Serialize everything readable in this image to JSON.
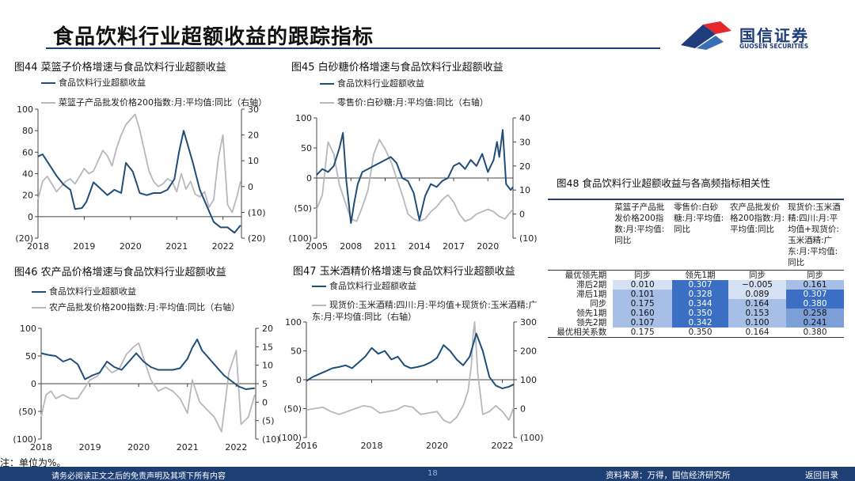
{
  "page": {
    "title": "食品饮料行业超额收益的跟踪指标",
    "logo_cn": "国信证券",
    "logo_en": "GUOSEN SECURITIES",
    "note": "注：单位为%。",
    "footer_disclaimer": "请务必阅读正文之后的免责声明及其项下所有内容",
    "page_number": "18",
    "footer_source": "资料来源：万得，国信经济研究所",
    "back_link": "返回目录"
  },
  "colors": {
    "dark": "#1f4e79",
    "light": "#b7b7bd",
    "brand": "#1e3f73",
    "accent_red": "#e4272c"
  },
  "chart_data": [
    {
      "id": "fig44",
      "type": "line",
      "title": "图44 菜篮子价格增速与食品饮料行业超额收益",
      "legend": [
        "食品饮料行业超额收益",
        "菜篮子产品批发价格200指数:月:平均值:同比（右轴）"
      ],
      "x_ticks": [
        "2018",
        "2019",
        "2020",
        "2021",
        "2022"
      ],
      "x_range": [
        2018,
        2022.4
      ],
      "y_left_ticks": [
        "100",
        "80",
        "60",
        "40",
        "20",
        "0",
        "(20)"
      ],
      "y_left": [
        -20,
        100
      ],
      "y_right_ticks": [
        "30",
        "20",
        "10",
        "0",
        "(10)",
        "(20)"
      ],
      "y_right": [
        -20,
        30
      ],
      "series": [
        {
          "name": "食品饮料行业超额收益",
          "axis": "left",
          "x": [
            2018,
            2018.1,
            2018.25,
            2018.4,
            2018.55,
            2018.7,
            2018.8,
            2018.95,
            2019.05,
            2019.2,
            2019.35,
            2019.5,
            2019.65,
            2019.8,
            2019.9,
            2020.05,
            2020.2,
            2020.35,
            2020.5,
            2020.65,
            2020.8,
            2020.95,
            2021.05,
            2021.15,
            2021.25,
            2021.35,
            2021.5,
            2021.65,
            2021.8,
            2021.95,
            2022.1,
            2022.25,
            2022.38
          ],
          "y": [
            56,
            58,
            48,
            38,
            30,
            25,
            7,
            8,
            14,
            32,
            26,
            20,
            25,
            22,
            50,
            42,
            22,
            20,
            22,
            22,
            25,
            35,
            60,
            80,
            65,
            50,
            25,
            10,
            -5,
            -10,
            -10,
            -15,
            -8
          ]
        },
        {
          "name": "菜篮子产品批发价格200指数:月:平均值:同比（右轴）",
          "axis": "right",
          "x": [
            2018,
            2018.1,
            2018.2,
            2018.3,
            2018.4,
            2018.5,
            2018.6,
            2018.7,
            2018.8,
            2018.9,
            2019,
            2019.1,
            2019.2,
            2019.3,
            2019.4,
            2019.5,
            2019.6,
            2019.7,
            2019.8,
            2019.9,
            2020,
            2020.1,
            2020.2,
            2020.3,
            2020.4,
            2020.5,
            2020.6,
            2020.7,
            2020.8,
            2020.9,
            2021,
            2021.1,
            2021.2,
            2021.3,
            2021.4,
            2021.5,
            2021.6,
            2021.7,
            2021.8,
            2021.9,
            2022,
            2022.1,
            2022.2,
            2022.3,
            2022.38
          ],
          "y": [
            -5,
            2,
            4,
            1,
            -2,
            0,
            2,
            3,
            1,
            4,
            7,
            5,
            6,
            10,
            14,
            12,
            8,
            15,
            20,
            24,
            26,
            28,
            22,
            14,
            6,
            2,
            0,
            1,
            3,
            2,
            -2,
            5,
            -1,
            2,
            -3,
            -4,
            -2,
            -8,
            -5,
            11,
            20,
            -7,
            -10,
            -4,
            2
          ]
        }
      ]
    },
    {
      "id": "fig45",
      "type": "line",
      "title": "图45 白砂糖价格增速与食品饮料行业超额收益",
      "legend": [
        "食品饮料行业超额收益",
        "零售价:白砂糖:月:平均值:同比（右轴）"
      ],
      "x_ticks": [
        "2005",
        "2008",
        "2011",
        "2014",
        "2017",
        "2020"
      ],
      "x_range": [
        2005,
        2022.2
      ],
      "y_left_ticks": [
        "100",
        "50",
        "0",
        "(50)",
        "(100)"
      ],
      "y_left": [
        -100,
        100
      ],
      "y_right_ticks": [
        "40",
        "30",
        "20",
        "10",
        "0",
        "(10)"
      ],
      "y_right": [
        -10,
        40
      ],
      "series": [
        {
          "name": "食品饮料行业超额收益",
          "axis": "left",
          "x": [
            2005,
            2005.5,
            2006,
            2006.5,
            2007,
            2007.3,
            2007.6,
            2008,
            2008.3,
            2008.6,
            2009,
            2009.5,
            2010,
            2010.5,
            2011,
            2011.5,
            2012,
            2012.5,
            2013,
            2013.5,
            2014,
            2014.5,
            2015,
            2015.5,
            2016,
            2016.5,
            2017,
            2017.5,
            2018,
            2018.5,
            2019,
            2019.5,
            2020,
            2020.5,
            2020.8,
            2021,
            2021.3,
            2021.6,
            2022,
            2022.2
          ],
          "y": [
            5,
            15,
            10,
            20,
            50,
            75,
            -5,
            -75,
            -40,
            -10,
            10,
            15,
            20,
            25,
            30,
            35,
            25,
            0,
            -5,
            -25,
            -70,
            -30,
            -10,
            -15,
            -5,
            0,
            20,
            25,
            15,
            30,
            20,
            40,
            10,
            30,
            60,
            35,
            80,
            -10,
            -20,
            -15
          ]
        },
        {
          "name": "零售价:白砂糖:月:平均值:同比（右轴）",
          "axis": "right",
          "x": [
            2005,
            2005.5,
            2006,
            2006.5,
            2007,
            2007.5,
            2008,
            2008.5,
            2009,
            2009.5,
            2010,
            2010.5,
            2011,
            2011.5,
            2012,
            2012.5,
            2013,
            2013.5,
            2014,
            2014.5,
            2015,
            2015.5,
            2016,
            2016.5,
            2017,
            2017.5,
            2018,
            2018.5,
            2019,
            2019.5,
            2020,
            2020.5,
            2021,
            2021.5,
            2022,
            2022.2
          ],
          "y": [
            2,
            8,
            30,
            25,
            12,
            5,
            -2,
            -3,
            3,
            10,
            25,
            31,
            27,
            22,
            15,
            8,
            0,
            -2,
            -3,
            -2,
            1,
            3,
            6,
            8,
            5,
            0,
            -3,
            -2,
            0,
            1,
            2,
            1,
            -1,
            -2,
            1,
            2
          ]
        }
      ]
    },
    {
      "id": "fig46",
      "type": "line",
      "title": "图46 农产品价格增速与食品饮料行业超额收益",
      "legend": [
        "食品饮料行业超额收益",
        "农产品批发价格200指数:月:平均值:同比（右轴）"
      ],
      "x_ticks": [
        "2018",
        "2019",
        "2020",
        "2021",
        "2022"
      ],
      "x_range": [
        2018,
        2022.4
      ],
      "y_left_ticks": [
        "100",
        "50",
        "0",
        "(50)",
        "(100)"
      ],
      "y_left": [
        -100,
        100
      ],
      "y_right_ticks": [
        "20",
        "15",
        "10",
        "5",
        "0",
        "(5)",
        "(10)"
      ],
      "y_right": [
        -10,
        20
      ],
      "series": [
        {
          "name": "食品饮料行业超额收益",
          "axis": "left",
          "x": [
            2018,
            2018.15,
            2018.3,
            2018.45,
            2018.6,
            2018.75,
            2018.9,
            2019.05,
            2019.2,
            2019.35,
            2019.5,
            2019.65,
            2019.8,
            2019.95,
            2020.1,
            2020.25,
            2020.4,
            2020.55,
            2020.7,
            2020.85,
            2021,
            2021.1,
            2021.2,
            2021.3,
            2021.45,
            2021.6,
            2021.75,
            2021.9,
            2022.05,
            2022.2,
            2022.38
          ],
          "y": [
            55,
            52,
            50,
            40,
            45,
            35,
            8,
            15,
            20,
            40,
            30,
            25,
            40,
            55,
            40,
            30,
            25,
            25,
            25,
            28,
            45,
            65,
            80,
            60,
            45,
            30,
            15,
            5,
            -5,
            -10,
            -8
          ]
        },
        {
          "name": "农产品批发价格200指数:月:平均值:同比（右轴）",
          "axis": "right",
          "x": [
            2018,
            2018.1,
            2018.2,
            2018.3,
            2018.45,
            2018.6,
            2018.75,
            2018.9,
            2019,
            2019.15,
            2019.3,
            2019.45,
            2019.6,
            2019.75,
            2019.9,
            2020,
            2020.1,
            2020.25,
            2020.4,
            2020.55,
            2020.7,
            2020.85,
            2021,
            2021.1,
            2021.25,
            2021.4,
            2021.55,
            2021.7,
            2021.85,
            2022,
            2022.1,
            2022.25,
            2022.38
          ],
          "y": [
            -4,
            2,
            3,
            1,
            2,
            1,
            1,
            4,
            6,
            7,
            10,
            8,
            9,
            13,
            15,
            16,
            12,
            6,
            3,
            4,
            3,
            1,
            -3,
            6,
            0,
            -2,
            -4,
            -8,
            8,
            14,
            -6,
            -4,
            2
          ]
        }
      ]
    },
    {
      "id": "fig47",
      "type": "line",
      "title": "图47 玉米酒精价格增速与食品饮料行业超额收益",
      "legend": [
        "食品饮料行业超额收益",
        "现货价:玉米酒精:四川:月:平均值+现货价:玉米酒精:广东:月:平均值:同比（右轴）"
      ],
      "x_ticks": [
        "2016",
        "2018",
        "2020",
        "2022"
      ],
      "x_range": [
        2016,
        2022.35
      ],
      "y_left_ticks": [
        "100",
        "50",
        "0",
        "(50)",
        "(100)"
      ],
      "y_left": [
        -100,
        100
      ],
      "y_right_ticks": [
        "300",
        "200",
        "100",
        "0",
        "(100)"
      ],
      "y_right": [
        -100,
        300
      ],
      "series": [
        {
          "name": "食品饮料行业超额收益",
          "axis": "left",
          "x": [
            2016,
            2016.2,
            2016.4,
            2016.6,
            2016.8,
            2017,
            2017.2,
            2017.4,
            2017.6,
            2017.8,
            2018,
            2018.2,
            2018.4,
            2018.6,
            2018.8,
            2019,
            2019.2,
            2019.4,
            2019.6,
            2019.8,
            2020,
            2020.2,
            2020.4,
            2020.6,
            2020.8,
            2021,
            2021.2,
            2021.4,
            2021.6,
            2021.8,
            2022,
            2022.2,
            2022.35
          ],
          "y": [
            -2,
            5,
            10,
            15,
            20,
            22,
            25,
            20,
            30,
            40,
            55,
            45,
            50,
            35,
            40,
            25,
            20,
            22,
            25,
            30,
            38,
            60,
            50,
            35,
            25,
            40,
            80,
            50,
            5,
            -10,
            -15,
            -12,
            -8
          ]
        },
        {
          "name": "现货价:玉米酒精:四川:月:平均值+现货价:玉米酒精:广东:月:平均值:同比（右轴）",
          "axis": "right",
          "x": [
            2016,
            2016.25,
            2016.5,
            2016.75,
            2017,
            2017.25,
            2017.5,
            2017.75,
            2018,
            2018.25,
            2018.5,
            2018.75,
            2019,
            2019.25,
            2019.5,
            2019.75,
            2020,
            2020.2,
            2020.4,
            2020.6,
            2020.8,
            2020.95,
            2021.05,
            2021.1,
            2021.15,
            2021.25,
            2021.4,
            2021.6,
            2021.8,
            2022,
            2022.2,
            2022.35
          ],
          "y": [
            -5,
            0,
            5,
            -10,
            -20,
            -10,
            0,
            10,
            5,
            -15,
            -10,
            -5,
            10,
            5,
            -20,
            -15,
            -10,
            -40,
            -50,
            -30,
            10,
            60,
            150,
            250,
            300,
            120,
            -20,
            -10,
            10,
            -10,
            -40,
            5
          ]
        }
      ]
    },
    {
      "id": "fig48",
      "type": "table",
      "title": "图48 食品饮料行业超额收益与各高频指标相关性",
      "columns": [
        "菜篮子产品批发价格200指数:月:平均值:同比",
        "零售价:白砂糖:月:平均值:同比",
        "农产品批发价格200指数:月:平均值:同比",
        "现货价:玉米酒精:四川:月:平均值+现货价:玉米酒精:广东:月:平均值:同比"
      ],
      "rows": [
        {
          "label": "最优领先期",
          "values": [
            "同步",
            "领先1期",
            "同步",
            "同步"
          ]
        },
        {
          "label": "滞后2期",
          "values": [
            "0.010",
            "0.307",
            "−0.005",
            "0.161"
          ]
        },
        {
          "label": "滞后1期",
          "values": [
            "0.101",
            "0.328",
            "0.089",
            "0.307"
          ]
        },
        {
          "label": "同步",
          "values": [
            "0.175",
            "0.344",
            "0.164",
            "0.380"
          ]
        },
        {
          "label": "领先1期",
          "values": [
            "0.160",
            "0.350",
            "0.153",
            "0.258"
          ]
        },
        {
          "label": "领先2期",
          "values": [
            "0.107",
            "0.342",
            "0.100",
            "0.241"
          ]
        },
        {
          "label": "最优相关系数",
          "values": [
            "0.175",
            "0.350",
            "0.164",
            "0.380"
          ]
        }
      ]
    }
  ]
}
